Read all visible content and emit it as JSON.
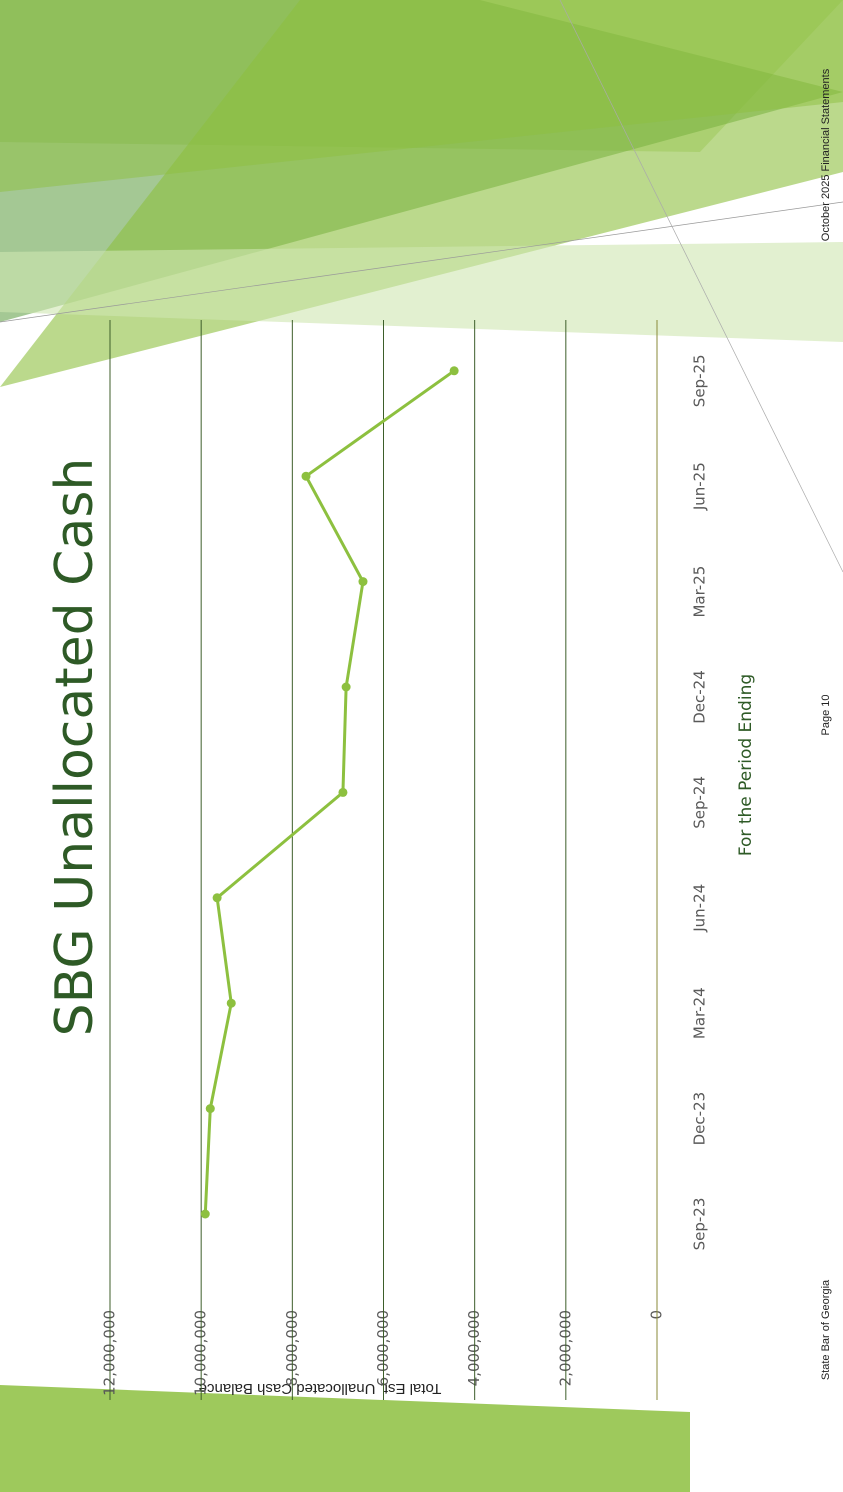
{
  "chart_data": {
    "type": "line",
    "title": "SBG Unallocated Cash",
    "x_label": "For the Period Ending",
    "y_label": "Total Est. Unallocated Cash Balance",
    "categories": [
      "Sep-23",
      "Dec-23",
      "Mar-24",
      "Jun-24",
      "Sep-24",
      "Dec-24",
      "Mar-25",
      "Jun-25",
      "Sep-25"
    ],
    "series": [
      {
        "name": "Total Est. Unallocated Cash Balance",
        "color": "#8dc03f",
        "values": [
          9910000,
          9800000,
          9340000,
          9650000,
          6890000,
          6820000,
          6450000,
          7700000,
          4450000
        ]
      }
    ],
    "ylim": [
      0,
      12000000
    ],
    "yticks": [
      0,
      {
        "value": 2000000,
        "label": "2,000,000"
      },
      {
        "value": 4000000,
        "label": "4,000,000"
      },
      {
        "value": 6000000,
        "label": "6,000,000"
      },
      {
        "value": 8000000,
        "label": "8,000,000"
      },
      {
        "value": 10000000,
        "label": "10,000,000"
      },
      {
        "value": 12000000,
        "label": "12,000,000"
      }
    ],
    "grid": true
  },
  "footer": {
    "left": "State Bar of Georgia",
    "center": "Page 10",
    "right": "October 2025 Financial Statements"
  }
}
